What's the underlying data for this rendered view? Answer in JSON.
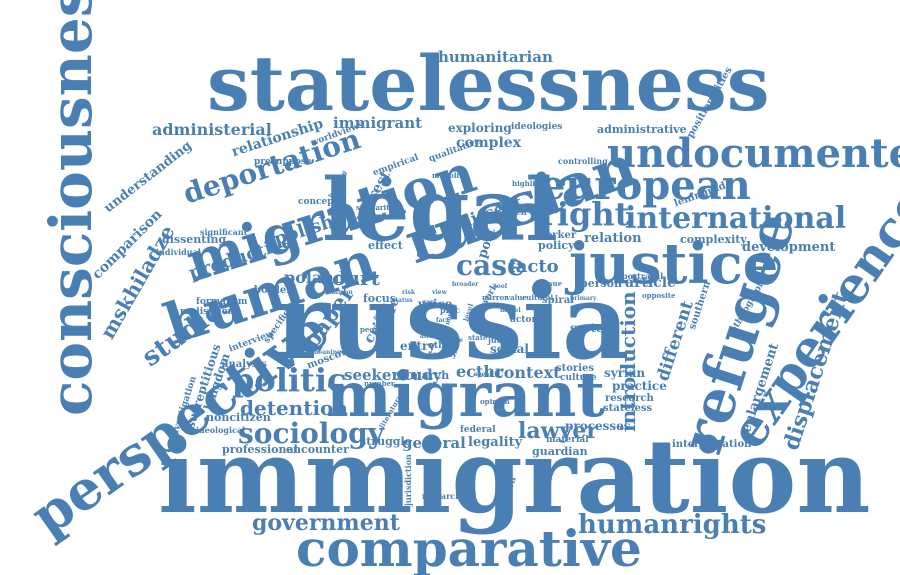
{
  "cloud": {
    "color": "#4a7fb3",
    "words": [
      "statelessness",
      "consciousness",
      "perspective",
      "humanitarian",
      "migration",
      "russian",
      "undocumented",
      "legal",
      "european",
      "human",
      "justice",
      "right",
      "international",
      "refugee",
      "experience",
      "russia",
      "migrant",
      "immigration",
      "comparative",
      "government",
      "humanrights",
      "sociology",
      "politic",
      "detention",
      "deportation",
      "administerial",
      "administrative",
      "immigrant",
      "exploring",
      "ideologies",
      "positionalities",
      "relationship",
      "worldviews",
      "complex",
      "qualitative",
      "understanding",
      "comparison",
      "mskhiladze",
      "productive",
      "polish",
      "studies",
      "poland",
      "court",
      "case",
      "facto",
      "dissent",
      "interest",
      "effect",
      "focus",
      "voice",
      "paper",
      "crisis",
      "article",
      "person",
      "policy",
      "relation",
      "complexity",
      "development",
      "introduction",
      "different",
      "southern",
      "enlargement",
      "displacement",
      "ethnographic",
      "leningrad",
      "worker",
      "portrayal",
      "opposite",
      "system",
      "context",
      "ecthr",
      "seeker",
      "study",
      "lawyer",
      "general",
      "legality",
      "processes",
      "research",
      "stateless",
      "practice",
      "syrian",
      "interpretation",
      "guardian",
      "material",
      "federal",
      "professional",
      "encounter",
      "noncitizen",
      "ideological",
      "investigation",
      "surreptitious",
      "kingdom",
      "analysis",
      "interview",
      "realisation",
      "formalism",
      "border",
      "specific",
      "moscow",
      "entry",
      "more",
      "social",
      "stories",
      "culture",
      "judge",
      "march",
      "reality",
      "other",
      "struggle",
      "jurisdiction",
      "protection",
      "researcher",
      "dissenting",
      "individual",
      "significant",
      "concept",
      "presuppose",
      "empirical",
      "controlling",
      "highlight",
      "search",
      "post",
      "similarity",
      "monolith",
      "number",
      "opinion",
      "issue",
      "literature",
      "spiral",
      "mirror",
      "value",
      "cultural",
      "status",
      "common",
      "actor",
      "speak",
      "breaking",
      "broader",
      "primary",
      "service",
      "level",
      "state",
      "affect",
      "model",
      "people",
      "argue",
      "meaning",
      "gap",
      "proc",
      "work",
      "notion",
      "fact",
      "view",
      "tool",
      "risk",
      "life"
    ]
  }
}
